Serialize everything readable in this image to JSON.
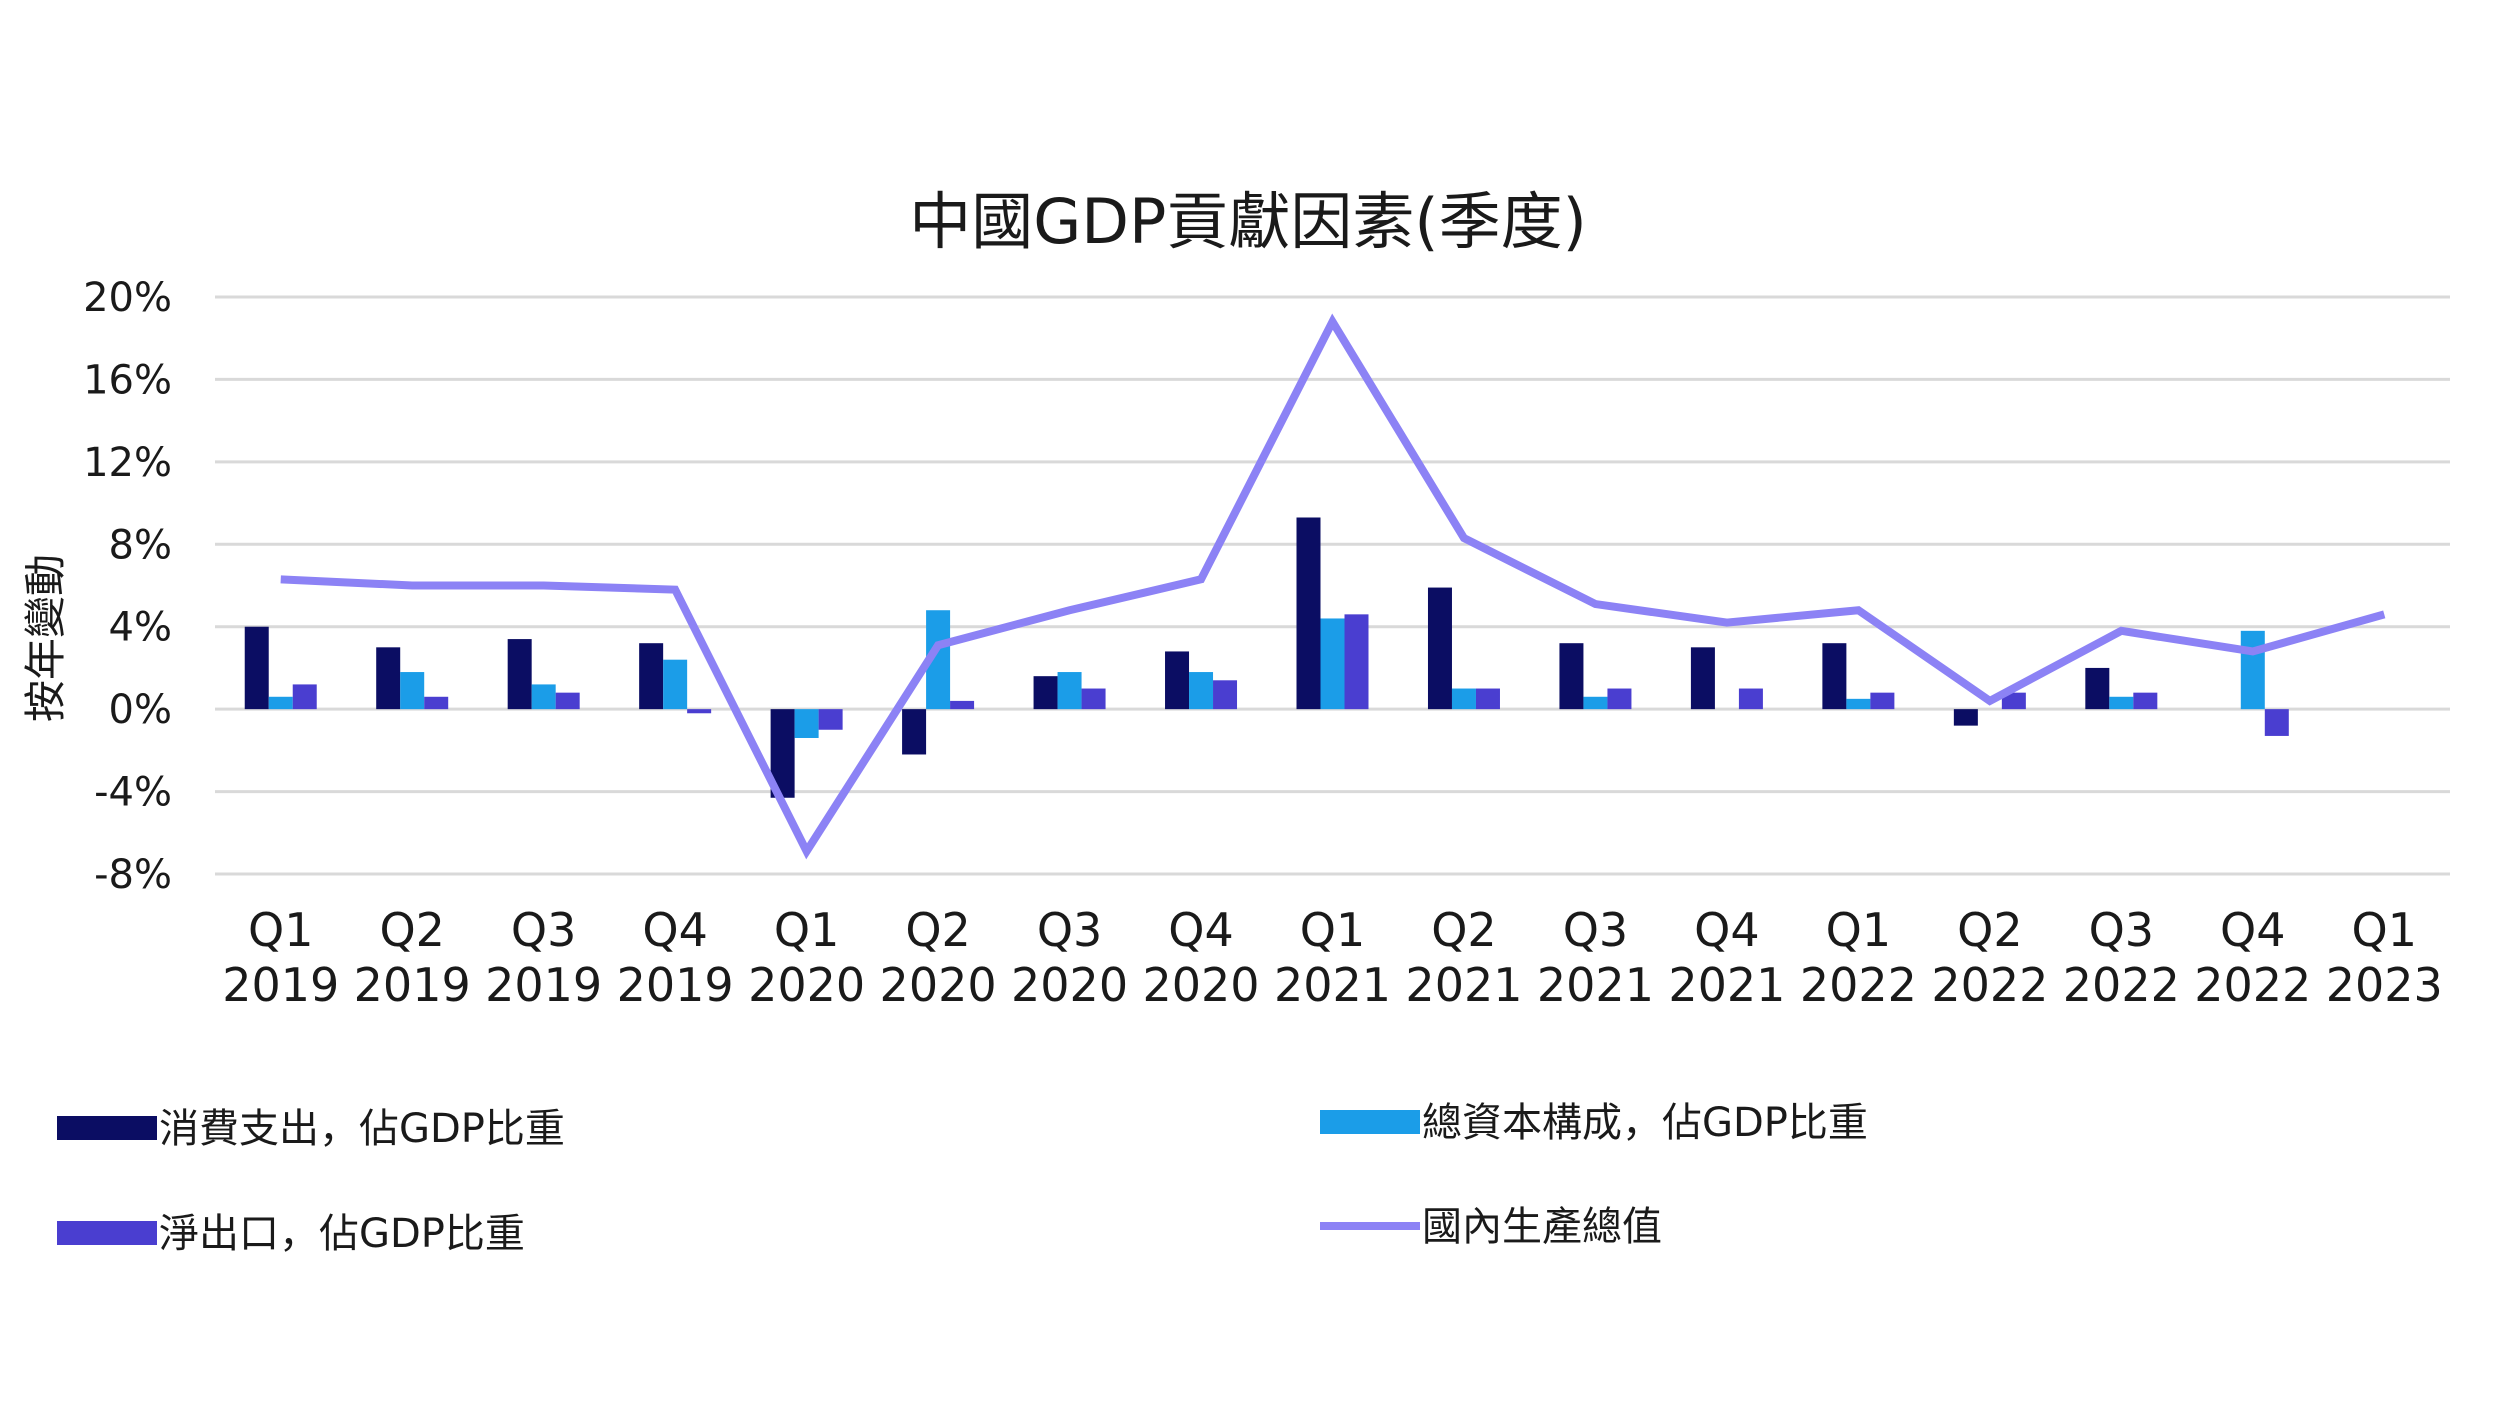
{
  "chart_data": {
    "type": "bar",
    "title": "中國GDP貢獻因素(季度)",
    "ylabel": "按年變動",
    "xlabel": "",
    "ylim": [
      -8,
      20
    ],
    "yticks": [
      20,
      16,
      12,
      8,
      4,
      0,
      -4,
      -8
    ],
    "ytick_labels": [
      "20%",
      "16%",
      "12%",
      "8%",
      "4%",
      "0%",
      "-4%",
      "-8%"
    ],
    "grid": true,
    "legend_position": "bottom",
    "categories": [
      [
        "Q1",
        "2019"
      ],
      [
        "Q2",
        "2019"
      ],
      [
        "Q3",
        "2019"
      ],
      [
        "Q4",
        "2019"
      ],
      [
        "Q1",
        "2020"
      ],
      [
        "Q2",
        "2020"
      ],
      [
        "Q3",
        "2020"
      ],
      [
        "Q4",
        "2020"
      ],
      [
        "Q1",
        "2021"
      ],
      [
        "Q2",
        "2021"
      ],
      [
        "Q3",
        "2021"
      ],
      [
        "Q4",
        "2021"
      ],
      [
        "Q1",
        "2022"
      ],
      [
        "Q2",
        "2022"
      ],
      [
        "Q3",
        "2022"
      ],
      [
        "Q4",
        "2022"
      ],
      [
        "Q1",
        "2023"
      ]
    ],
    "series": [
      {
        "name": "消費支出，佔GDP比重",
        "type": "bar",
        "color": "#0b0d63",
        "values": [
          4.0,
          3.0,
          3.4,
          3.2,
          -4.3,
          -2.2,
          1.6,
          2.8,
          9.3,
          5.9,
          3.2,
          3.0,
          3.2,
          -0.8,
          2.0,
          null,
          null
        ]
      },
      {
        "name": "總資本構成，佔GDP比重",
        "type": "bar",
        "color": "#1b9de8",
        "values": [
          0.6,
          1.8,
          1.2,
          2.4,
          -1.4,
          4.8,
          1.8,
          1.8,
          4.4,
          1.0,
          0.6,
          null,
          0.5,
          null,
          0.6,
          3.8,
          null
        ]
      },
      {
        "name": "淨出口，佔GDP比重",
        "type": "bar",
        "color": "#4a3ed0",
        "values": [
          1.2,
          0.6,
          0.8,
          -0.2,
          -1.0,
          0.4,
          1.0,
          1.4,
          4.6,
          1.0,
          1.0,
          1.0,
          0.8,
          0.8,
          0.8,
          -1.3,
          null
        ]
      },
      {
        "name": "國內生產總值",
        "type": "line",
        "color": "#8c82f5",
        "values": [
          6.3,
          6.0,
          6.0,
          5.8,
          -6.9,
          3.1,
          4.8,
          6.3,
          18.8,
          8.3,
          5.1,
          4.2,
          4.8,
          0.4,
          3.8,
          2.8,
          4.6
        ]
      }
    ]
  }
}
